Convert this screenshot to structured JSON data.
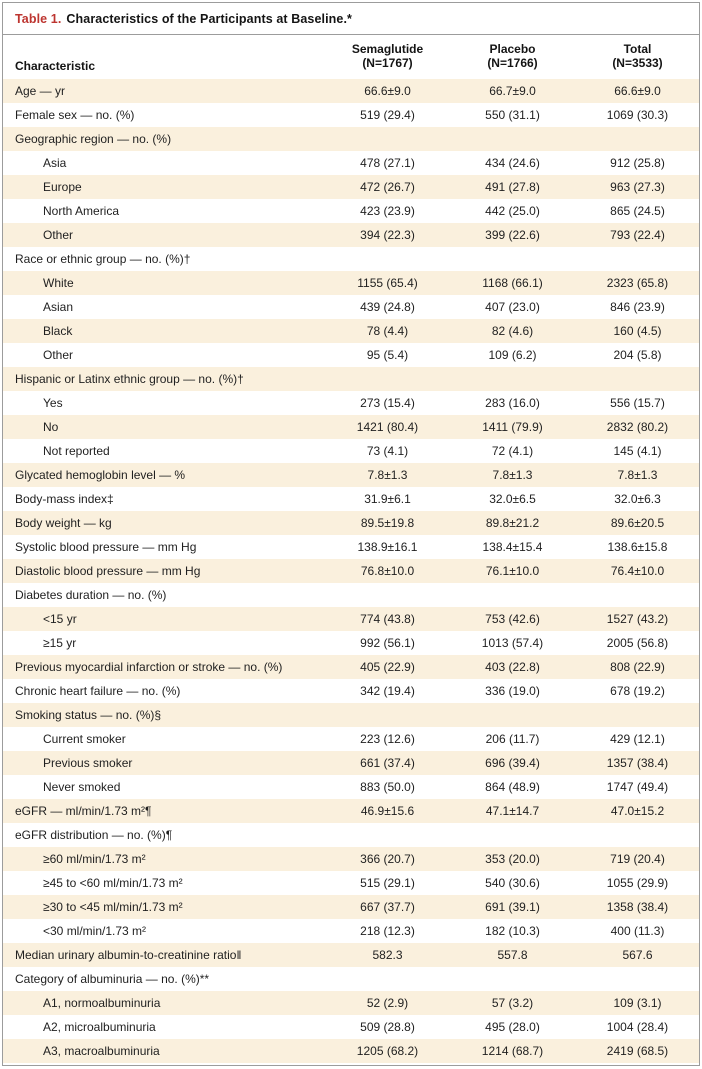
{
  "title": {
    "label": "Table 1.",
    "text": "Characteristics of the Participants at Baseline.*"
  },
  "table": {
    "header": {
      "characteristic": "Characteristic",
      "groups": [
        {
          "name": "Semaglutide",
          "n": "(N=1767)"
        },
        {
          "name": "Placebo",
          "n": "(N=1766)"
        },
        {
          "name": "Total",
          "n": "(N=3533)"
        }
      ]
    },
    "rows": [
      {
        "label": "Age — yr",
        "indent": 0,
        "values": [
          "66.6±9.0",
          "66.7±9.0",
          "66.6±9.0"
        ]
      },
      {
        "label": "Female sex — no. (%)",
        "indent": 0,
        "values": [
          "519 (29.4)",
          "550 (31.1)",
          "1069 (30.3)"
        ]
      },
      {
        "label": "Geographic region — no. (%)",
        "indent": 0,
        "values": [
          "",
          "",
          ""
        ]
      },
      {
        "label": "Asia",
        "indent": 1,
        "values": [
          "478 (27.1)",
          "434 (24.6)",
          "912 (25.8)"
        ]
      },
      {
        "label": "Europe",
        "indent": 1,
        "values": [
          "472 (26.7)",
          "491 (27.8)",
          "963 (27.3)"
        ]
      },
      {
        "label": "North America",
        "indent": 1,
        "values": [
          "423 (23.9)",
          "442 (25.0)",
          "865 (24.5)"
        ]
      },
      {
        "label": "Other",
        "indent": 1,
        "values": [
          "394 (22.3)",
          "399 (22.6)",
          "793 (22.4)"
        ]
      },
      {
        "label": "Race or ethnic group — no. (%)†",
        "indent": 0,
        "values": [
          "",
          "",
          ""
        ]
      },
      {
        "label": "White",
        "indent": 1,
        "values": [
          "1155 (65.4)",
          "1168 (66.1)",
          "2323 (65.8)"
        ]
      },
      {
        "label": "Asian",
        "indent": 1,
        "values": [
          "439 (24.8)",
          "407 (23.0)",
          "846 (23.9)"
        ]
      },
      {
        "label": "Black",
        "indent": 1,
        "values": [
          "78 (4.4)",
          "82 (4.6)",
          "160 (4.5)"
        ]
      },
      {
        "label": "Other",
        "indent": 1,
        "values": [
          "95 (5.4)",
          "109 (6.2)",
          "204 (5.8)"
        ]
      },
      {
        "label": "Hispanic or Latinx ethnic group — no. (%)†",
        "indent": 0,
        "values": [
          "",
          "",
          ""
        ]
      },
      {
        "label": "Yes",
        "indent": 1,
        "values": [
          "273 (15.4)",
          "283 (16.0)",
          "556 (15.7)"
        ]
      },
      {
        "label": "No",
        "indent": 1,
        "values": [
          "1421 (80.4)",
          "1411 (79.9)",
          "2832 (80.2)"
        ]
      },
      {
        "label": "Not reported",
        "indent": 1,
        "values": [
          "73 (4.1)",
          "72 (4.1)",
          "145 (4.1)"
        ]
      },
      {
        "label": "Glycated hemoglobin level — %",
        "indent": 0,
        "values": [
          "7.8±1.3",
          "7.8±1.3",
          "7.8±1.3"
        ]
      },
      {
        "label": "Body-mass index‡",
        "indent": 0,
        "values": [
          "31.9±6.1",
          "32.0±6.5",
          "32.0±6.3"
        ]
      },
      {
        "label": "Body weight — kg",
        "indent": 0,
        "values": [
          "89.5±19.8",
          "89.8±21.2",
          "89.6±20.5"
        ]
      },
      {
        "label": "Systolic blood pressure — mm Hg",
        "indent": 0,
        "values": [
          "138.9±16.1",
          "138.4±15.4",
          "138.6±15.8"
        ]
      },
      {
        "label": "Diastolic blood pressure — mm Hg",
        "indent": 0,
        "values": [
          "76.8±10.0",
          "76.1±10.0",
          "76.4±10.0"
        ]
      },
      {
        "label": "Diabetes duration — no. (%)",
        "indent": 0,
        "values": [
          "",
          "",
          ""
        ]
      },
      {
        "label": "<15 yr",
        "indent": 1,
        "values": [
          "774 (43.8)",
          "753 (42.6)",
          "1527 (43.2)"
        ]
      },
      {
        "label": "≥15 yr",
        "indent": 1,
        "values": [
          "992 (56.1)",
          "1013 (57.4)",
          "2005 (56.8)"
        ]
      },
      {
        "label": "Previous myocardial infarction or stroke — no. (%)",
        "indent": 0,
        "values": [
          "405 (22.9)",
          "403 (22.8)",
          "808 (22.9)"
        ]
      },
      {
        "label": "Chronic heart failure — no. (%)",
        "indent": 0,
        "values": [
          "342 (19.4)",
          "336 (19.0)",
          "678 (19.2)"
        ]
      },
      {
        "label": "Smoking status — no. (%)§",
        "indent": 0,
        "values": [
          "",
          "",
          ""
        ]
      },
      {
        "label": "Current smoker",
        "indent": 1,
        "values": [
          "223 (12.6)",
          "206 (11.7)",
          "429 (12.1)"
        ]
      },
      {
        "label": "Previous smoker",
        "indent": 1,
        "values": [
          "661 (37.4)",
          "696 (39.4)",
          "1357 (38.4)"
        ]
      },
      {
        "label": "Never smoked",
        "indent": 1,
        "values": [
          "883 (50.0)",
          "864 (48.9)",
          "1747 (49.4)"
        ]
      },
      {
        "label": "eGFR — ml/min/1.73 m²¶",
        "indent": 0,
        "values": [
          "46.9±15.6",
          "47.1±14.7",
          "47.0±15.2"
        ]
      },
      {
        "label": "eGFR distribution — no. (%)¶",
        "indent": 0,
        "values": [
          "",
          "",
          ""
        ]
      },
      {
        "label": "≥60 ml/min/1.73 m²",
        "indent": 1,
        "values": [
          "366 (20.7)",
          "353 (20.0)",
          "719 (20.4)"
        ]
      },
      {
        "label": "≥45 to <60 ml/min/1.73 m²",
        "indent": 1,
        "values": [
          "515 (29.1)",
          "540 (30.6)",
          "1055 (29.9)"
        ]
      },
      {
        "label": "≥30 to <45 ml/min/1.73 m²",
        "indent": 1,
        "values": [
          "667 (37.7)",
          "691 (39.1)",
          "1358 (38.4)"
        ]
      },
      {
        "label": "<30 ml/min/1.73 m²",
        "indent": 1,
        "values": [
          "218 (12.3)",
          "182 (10.3)",
          "400 (11.3)"
        ]
      },
      {
        "label": "Median urinary albumin-to-creatinine ratio‖",
        "indent": 0,
        "values": [
          "582.3",
          "557.8",
          "567.6"
        ]
      },
      {
        "label": "Category of albuminuria — no. (%)**",
        "indent": 0,
        "values": [
          "",
          "",
          ""
        ]
      },
      {
        "label": "A1, normoalbuminuria",
        "indent": 1,
        "values": [
          "52 (2.9)",
          "57 (3.2)",
          "109 (3.1)"
        ]
      },
      {
        "label": "A2, microalbuminuria",
        "indent": 1,
        "values": [
          "509 (28.8)",
          "495 (28.0)",
          "1004 (28.4)"
        ]
      },
      {
        "label": "A3, macroalbuminuria",
        "indent": 1,
        "values": [
          "1205 (68.2)",
          "1214 (68.7)",
          "2419 (68.5)"
        ]
      }
    ]
  },
  "colors": {
    "accent_red": "#bd3530",
    "row_stripe": "#faf0dd",
    "frame_border": "#9c9c9c",
    "text": "#1f1f1f"
  }
}
